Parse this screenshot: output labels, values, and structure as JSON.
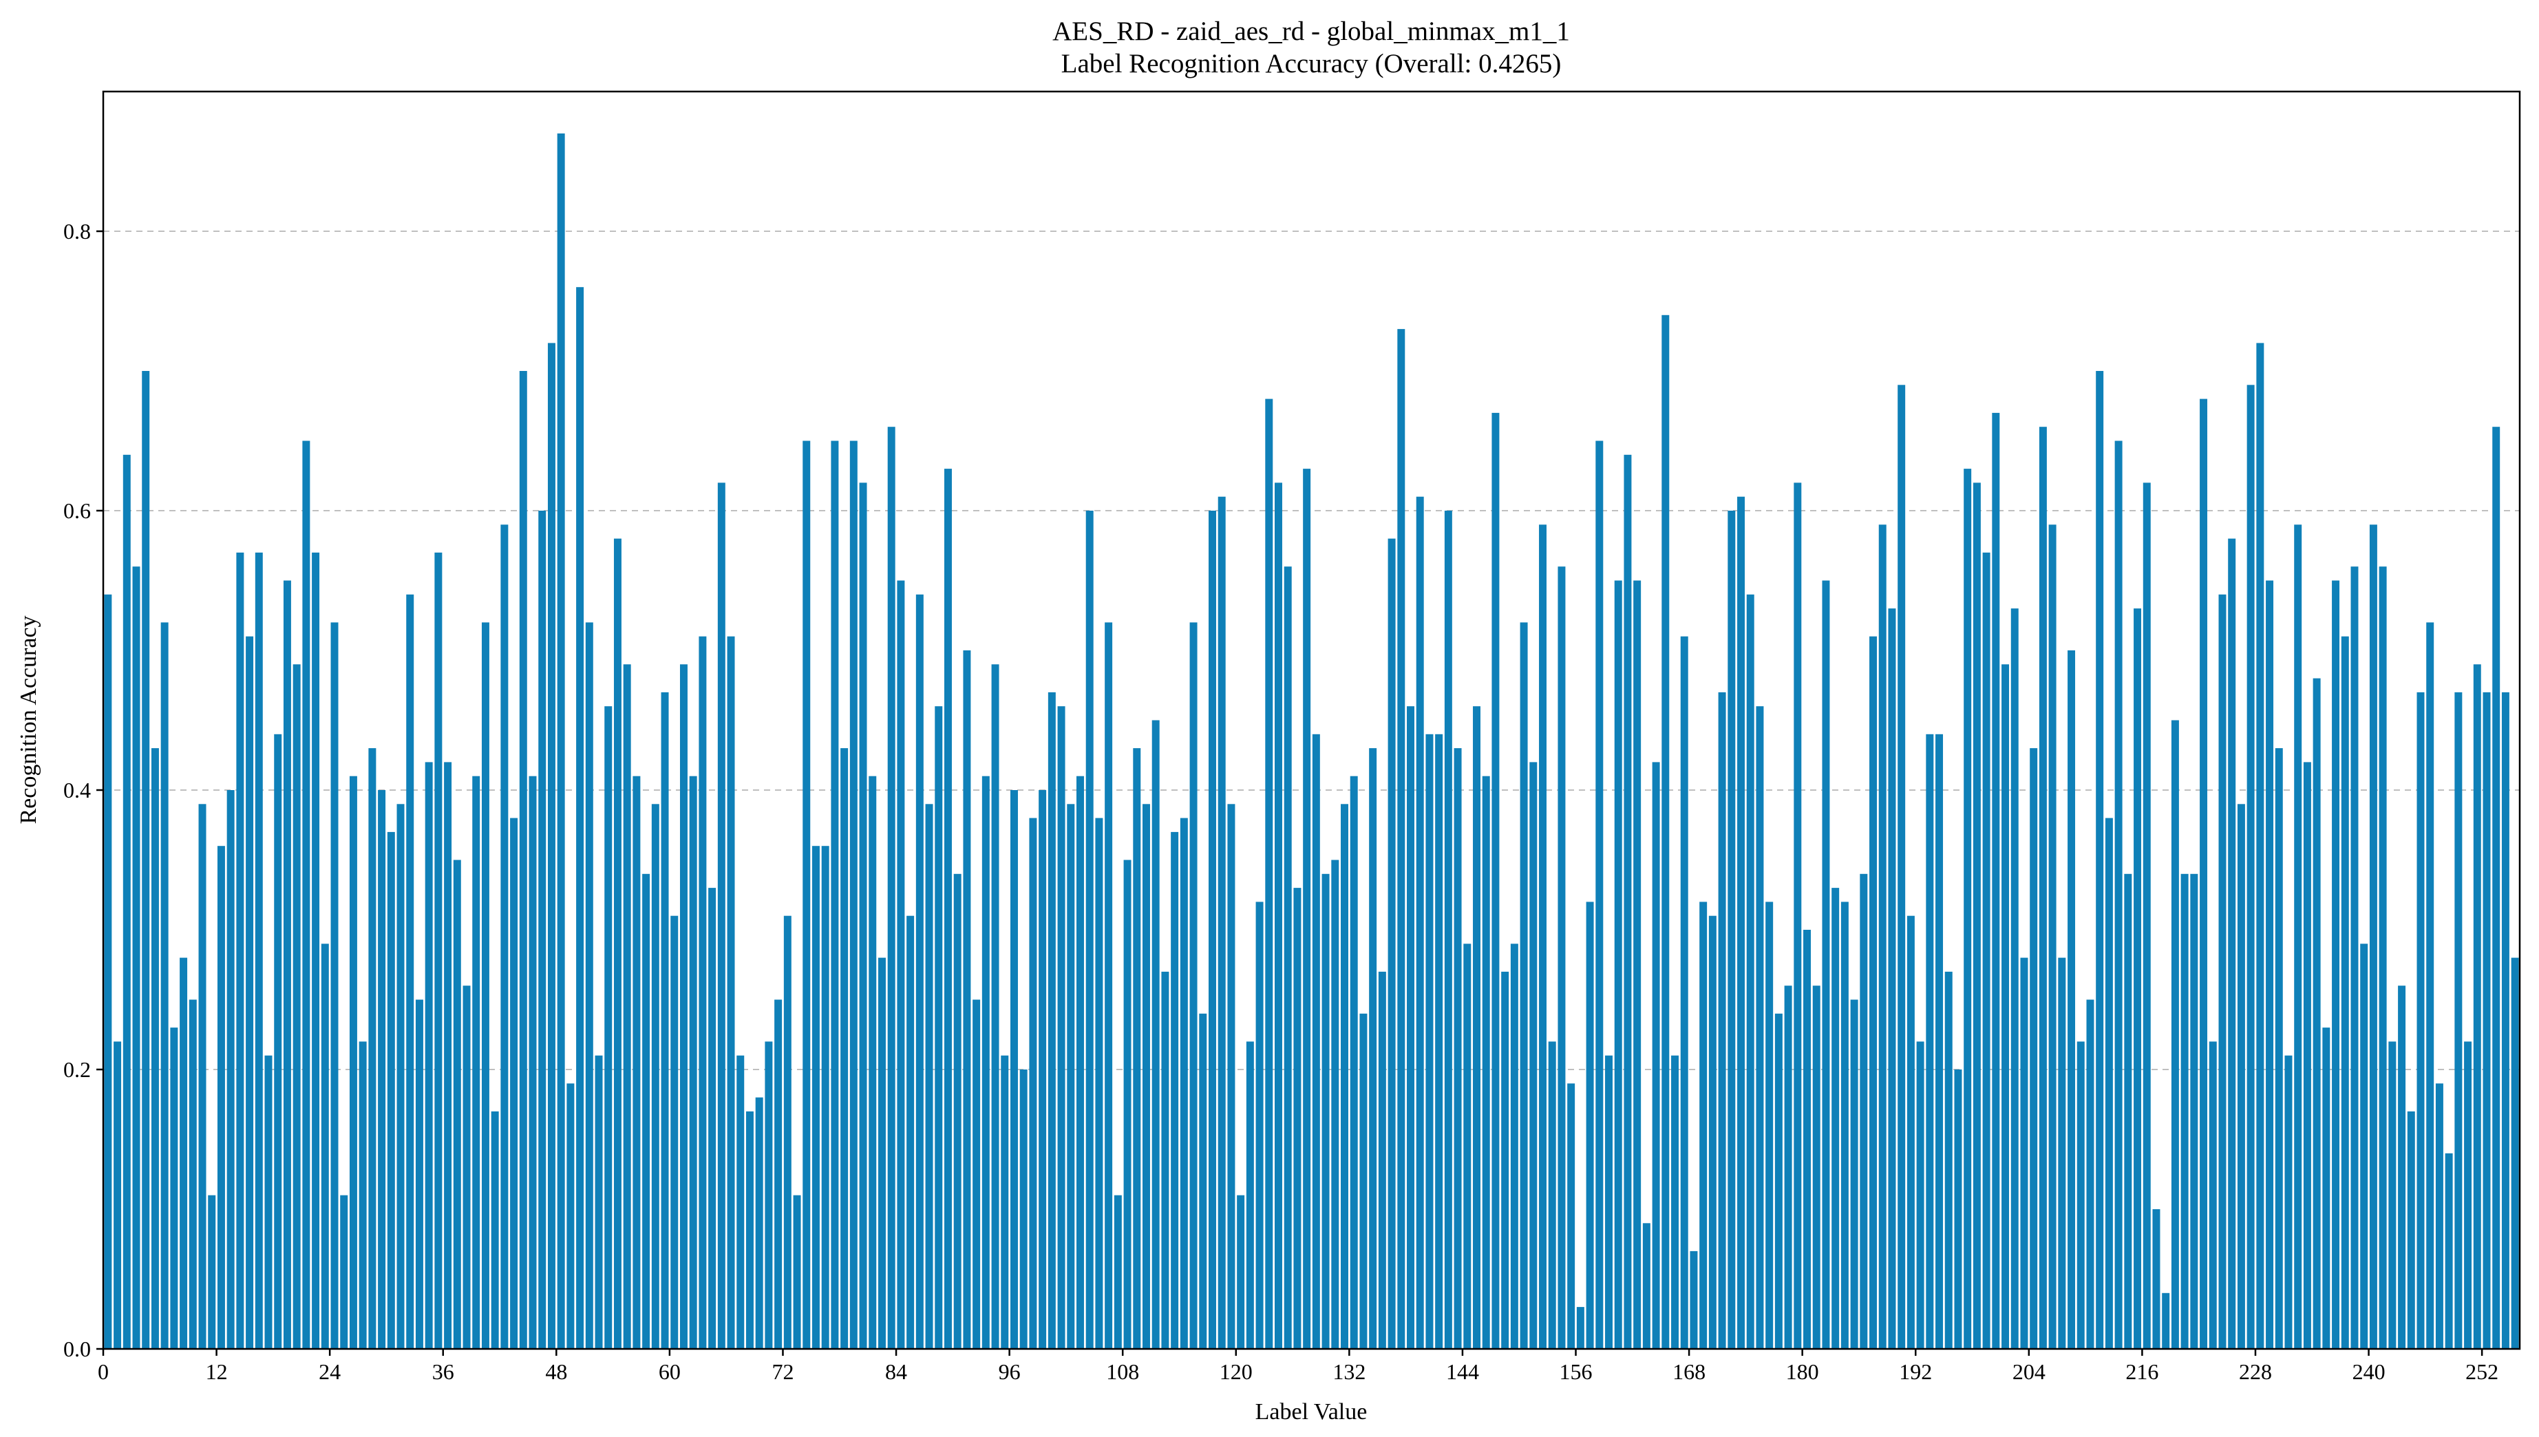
{
  "chart_data": {
    "type": "bar",
    "title": "AES_RD - zaid_aes_rd - global_minmax_m1_1",
    "subtitle": "Label Recognition Accuracy (Overall: 0.4265)",
    "xlabel": "Label Value",
    "ylabel": "Recognition Accuracy",
    "xlim": [
      0,
      256
    ],
    "ylim": [
      0.0,
      0.9
    ],
    "grid": "y-dashed",
    "bar_color": "#0f80b8",
    "xticks": [
      0,
      12,
      24,
      36,
      48,
      60,
      72,
      84,
      96,
      108,
      120,
      132,
      144,
      156,
      168,
      180,
      192,
      204,
      216,
      228,
      240,
      252
    ],
    "yticks": [
      "0.0",
      "0.2",
      "0.4",
      "0.6",
      "0.8"
    ],
    "x_start": 0,
    "values": [
      0.54,
      0.22,
      0.64,
      0.56,
      0.7,
      0.43,
      0.52,
      0.23,
      0.28,
      0.25,
      0.39,
      0.11,
      0.36,
      0.4,
      0.57,
      0.51,
      0.57,
      0.21,
      0.44,
      0.55,
      0.49,
      0.65,
      0.57,
      0.29,
      0.52,
      0.11,
      0.41,
      0.22,
      0.43,
      0.4,
      0.37,
      0.39,
      0.54,
      0.25,
      0.42,
      0.57,
      0.42,
      0.35,
      0.26,
      0.41,
      0.52,
      0.17,
      0.59,
      0.38,
      0.7,
      0.41,
      0.6,
      0.72,
      0.87,
      0.19,
      0.76,
      0.52,
      0.21,
      0.46,
      0.58,
      0.49,
      0.41,
      0.34,
      0.39,
      0.47,
      0.31,
      0.49,
      0.41,
      0.51,
      0.33,
      0.62,
      0.51,
      0.21,
      0.17,
      0.18,
      0.22,
      0.25,
      0.31,
      0.11,
      0.65,
      0.36,
      0.36,
      0.65,
      0.43,
      0.65,
      0.62,
      0.41,
      0.28,
      0.66,
      0.55,
      0.31,
      0.54,
      0.39,
      0.46,
      0.63,
      0.34,
      0.5,
      0.25,
      0.41,
      0.49,
      0.21,
      0.4,
      0.2,
      0.38,
      0.4,
      0.47,
      0.46,
      0.39,
      0.41,
      0.6,
      0.38,
      0.52,
      0.11,
      0.35,
      0.43,
      0.39,
      0.45,
      0.27,
      0.37,
      0.38,
      0.52,
      0.24,
      0.6,
      0.61,
      0.39,
      0.11,
      0.22,
      0.32,
      0.68,
      0.62,
      0.56,
      0.33,
      0.63,
      0.44,
      0.34,
      0.35,
      0.39,
      0.41,
      0.24,
      0.43,
      0.27,
      0.58,
      0.73,
      0.46,
      0.61,
      0.44,
      0.44,
      0.6,
      0.43,
      0.29,
      0.46,
      0.41,
      0.67,
      0.27,
      0.29,
      0.52,
      0.42,
      0.59,
      0.22,
      0.56,
      0.19,
      0.03,
      0.32,
      0.65,
      0.21,
      0.55,
      0.64,
      0.55,
      0.09,
      0.42,
      0.74,
      0.21,
      0.51,
      0.07,
      0.32,
      0.31,
      0.47,
      0.6,
      0.61,
      0.54,
      0.46,
      0.32,
      0.24,
      0.26,
      0.62,
      0.3,
      0.26,
      0.55,
      0.33,
      0.32,
      0.25,
      0.34,
      0.51,
      0.59,
      0.53,
      0.69,
      0.31,
      0.22,
      0.44,
      0.44,
      0.27,
      0.2,
      0.63,
      0.62,
      0.57,
      0.67,
      0.49,
      0.53,
      0.28,
      0.43,
      0.66,
      0.59,
      0.28,
      0.5,
      0.22,
      0.25,
      0.7,
      0.38,
      0.65,
      0.34,
      0.53,
      0.62,
      0.1,
      0.04,
      0.45,
      0.34,
      0.34,
      0.68,
      0.22,
      0.54,
      0.58,
      0.39,
      0.69,
      0.72,
      0.55,
      0.43,
      0.21,
      0.59,
      0.42,
      0.48,
      0.23,
      0.55,
      0.51,
      0.56,
      0.29,
      0.59,
      0.56,
      0.22,
      0.26,
      0.17,
      0.47,
      0.52,
      0.19,
      0.14,
      0.47,
      0.22,
      0.49,
      0.47,
      0.66,
      0.47,
      0.28
    ]
  }
}
